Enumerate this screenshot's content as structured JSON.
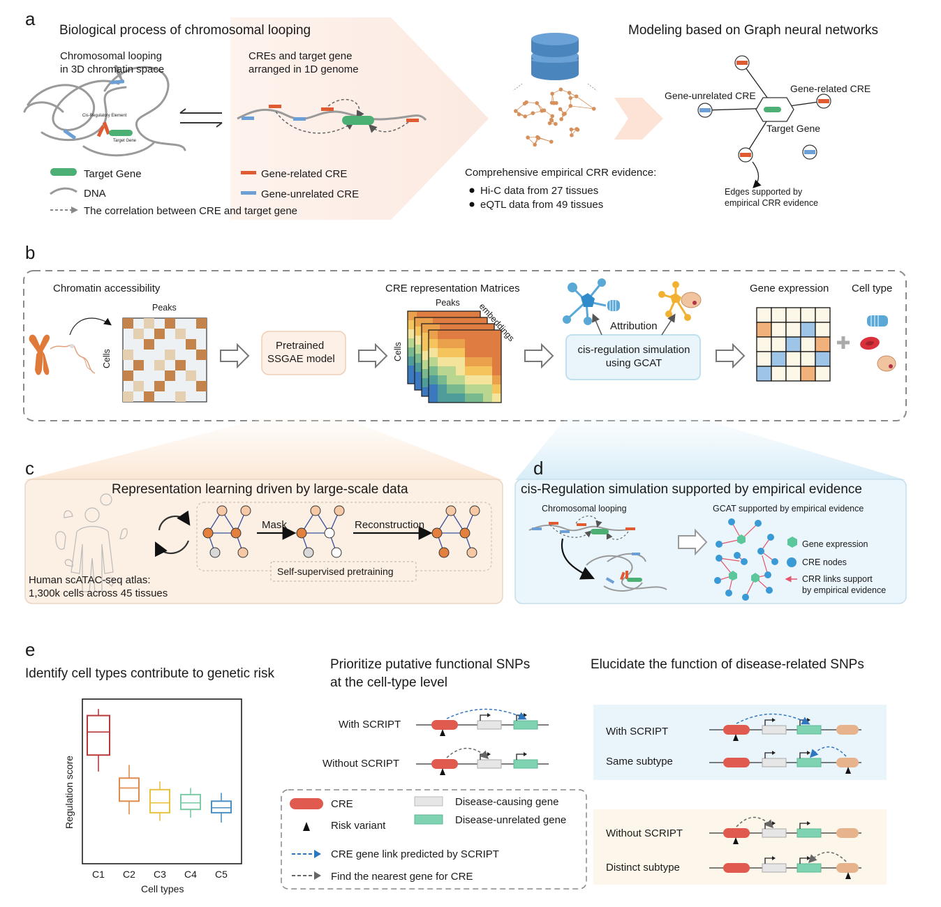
{
  "panel_a": {
    "letter": "a",
    "left_title": "Biological process of chromosomal looping",
    "right_title": "Modeling based on Graph neural networks",
    "looping_caption_1": "Chromosomal looping",
    "looping_caption_2": "in 3D chromatin space",
    "cre_caption_1": "CREs and target gene",
    "cre_caption_2": "arranged in 1D genome",
    "cis_reg_element": "Cis-Regulatory Element",
    "target_gene_small": "Target Gene",
    "legend": {
      "target_gene": "Target Gene",
      "dna": "DNA",
      "correlation": "The correlation between CRE and target gene",
      "gene_related": "Gene-related CRE",
      "gene_unrelated": "Gene-unrelated CRE"
    },
    "evidence_title": "Comprehensive empirical CRR evidence:",
    "evidence_items": [
      "Hi-C data from 27 tissues",
      "eQTL data from 49 tissues"
    ],
    "gnn": {
      "gene_unrelated": "Gene-unrelated CRE",
      "gene_related": "Gene-related CRE",
      "target_gene": "Target Gene",
      "edges_1": "Edges supported by",
      "edges_2": "empirical CRR evidence"
    }
  },
  "panel_b": {
    "letter": "b",
    "chromatin_accessibility": "Chromatin accessibility",
    "peaks": "Peaks",
    "cells": "Cells",
    "pretrained_1": "Pretrained",
    "pretrained_2": "SSGAE model",
    "cre_rep": "CRE representation Matrices",
    "peaks2": "Peaks",
    "cells2": "Cells",
    "embeddings": "embeddings",
    "attribution": "Attribution",
    "cis_sim_1": "cis-regulation simulation",
    "cis_sim_2": "using GCAT",
    "gene_expression": "Gene expression",
    "cell_type": "Cell type"
  },
  "panel_c": {
    "letter": "c",
    "title": "Representation learning driven by large-scale data",
    "mask": "Mask",
    "reconstruction": "Reconstruction",
    "self_supervised": "Self-supervised pretraining",
    "atlas_1": "Human scATAC-seq atlas:",
    "atlas_2": "1,300k cells across 45 tissues"
  },
  "panel_d": {
    "letter": "d",
    "title": "cis-Regulation simulation supported by empirical evidence",
    "looping": "Chromosomal looping",
    "gcat": "GCAT supported by empirical evidence",
    "legend_gene_expression": "Gene expression",
    "legend_cre_nodes": "CRE nodes",
    "legend_crr_1": "CRR links support",
    "legend_crr_2": "by empirical evidence"
  },
  "panel_e": {
    "letter": "e",
    "box_title": "Identify cell types contribute to genetic risk",
    "prioritize_1": "Prioritize putative functional SNPs",
    "prioritize_2": "at the cell-type level",
    "elucidate": "Elucidate the function of disease-related SNPs",
    "with_script": "With SCRIPT",
    "without_script": "Without SCRIPT",
    "with_script_r": "With SCRIPT",
    "same_subtype": "Same subtype",
    "without_script_r": "Without SCRIPT",
    "distinct_subtype": "Distinct subtype",
    "legend": {
      "cre": "CRE",
      "risk_variant": "Risk variant",
      "disease_causing": "Disease-causing gene",
      "disease_unrelated": "Disease-unrelated gene",
      "predicted": "CRE gene link predicted by SCRIPT",
      "nearest": "Find the nearest gene for CRE"
    }
  },
  "chart_data": {
    "type": "box",
    "title": "",
    "xlabel": "Cell types",
    "ylabel": "Regulation score",
    "categories": [
      "C1",
      "C2",
      "C3",
      "C4",
      "C5"
    ],
    "colors": [
      "#b83a3a",
      "#e08a4c",
      "#e8c23e",
      "#7ccaa6",
      "#4a8fc4"
    ],
    "boxes": [
      {
        "min": 0.56,
        "q1": 0.66,
        "median": 0.8,
        "q3": 0.9,
        "max": 0.94
      },
      {
        "min": 0.3,
        "q1": 0.38,
        "median": 0.46,
        "q3": 0.52,
        "max": 0.6
      },
      {
        "min": 0.26,
        "q1": 0.31,
        "median": 0.37,
        "q3": 0.45,
        "max": 0.5
      },
      {
        "min": 0.28,
        "q1": 0.33,
        "median": 0.37,
        "q3": 0.42,
        "max": 0.46
      },
      {
        "min": 0.25,
        "q1": 0.31,
        "median": 0.34,
        "q3": 0.38,
        "max": 0.43
      }
    ],
    "ylim": [
      0,
      1
    ],
    "grid": false
  }
}
